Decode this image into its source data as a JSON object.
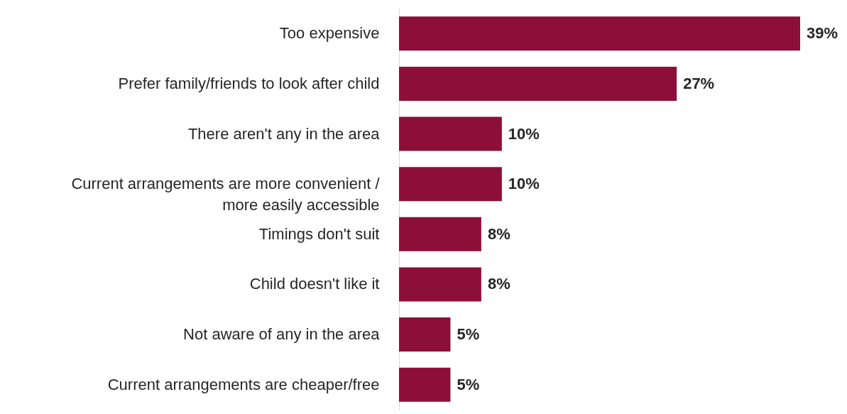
{
  "chart_data": {
    "type": "bar",
    "orientation": "horizontal",
    "categories": [
      "Too expensive",
      "Prefer family/friends to look after child",
      "There aren't any in the area",
      "Current arrangements are more convenient / more easily accessible",
      "Timings don't suit",
      "Child doesn't like it",
      "Not aware of any in the area",
      "Current arrangements are cheaper/free"
    ],
    "values": [
      39,
      27,
      10,
      10,
      8,
      8,
      5,
      5
    ],
    "color": "#8c0f3a",
    "value_labels": [
      "39%",
      "27%",
      "10%",
      "10%",
      "8%",
      "8%",
      "5%",
      "5%"
    ]
  }
}
